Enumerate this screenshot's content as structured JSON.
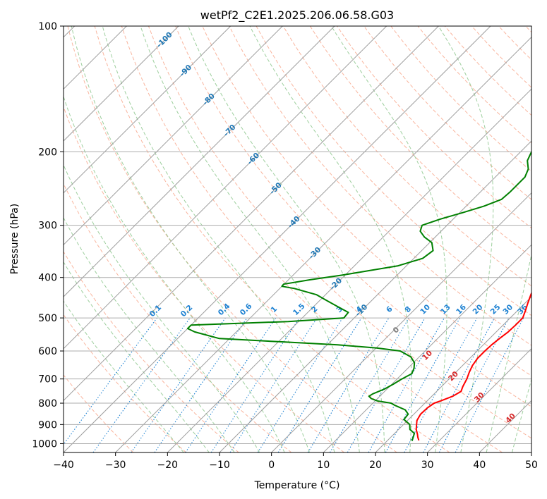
{
  "chart_data": {
    "type": "line",
    "title": "wetPf2_C2E1.2025.206.06.58.G03",
    "xlabel": "Temperature (°C)",
    "ylabel": "Pressure (hPa)",
    "xlim": [
      -40,
      50
    ],
    "ylim": [
      1050,
      100
    ],
    "y_scale": "log",
    "grid": true,
    "x_ticks": [
      -40,
      -30,
      -20,
      -10,
      0,
      10,
      20,
      30,
      40,
      50
    ],
    "x_tick_labels": [
      "−40",
      "−30",
      "−20",
      "−10",
      "0",
      "10",
      "20",
      "30",
      "40",
      "50"
    ],
    "y_ticks": [
      1000,
      900,
      800,
      700,
      600,
      500,
      400,
      300,
      200,
      100
    ],
    "y_tick_labels": [
      "1000",
      "900",
      "800",
      "700",
      "600",
      "500",
      "400",
      "300",
      "200",
      "100"
    ],
    "series": [
      {
        "color": "#ff0000",
        "pressure": [
          982,
          965,
          948,
          925,
          905,
          880,
          850,
          820,
          800,
          790,
          770,
          750,
          730,
          700,
          675,
          650,
          625,
          600,
          580,
          560,
          540,
          520,
          500,
          480,
          460,
          440,
          420,
          400,
          380,
          360,
          340,
          320,
          300,
          280,
          260,
          240,
          220,
          200,
          190,
          180,
          170,
          160,
          150,
          140,
          130,
          120,
          115,
          110,
          105,
          100
        ],
        "temperature": [
          26,
          25.2,
          24.5,
          23.4,
          22.7,
          21.8,
          21.3,
          21.4,
          21.8,
          22.6,
          24,
          24.7,
          24.1,
          23.4,
          22.6,
          21.9,
          21.5,
          21.5,
          21.6,
          21.9,
          22.3,
          22.4,
          22.4,
          21.5,
          20.5,
          19.5,
          18.6,
          17.2,
          15.6,
          14.1,
          13,
          13.2,
          13.8,
          12.4,
          10.6,
          8.1,
          5.6,
          3.6,
          3.1,
          3.1,
          3.1,
          2.7,
          1.5,
          0.1,
          -0.5,
          -0.9,
          -0.2,
          0.8,
          2.5,
          4.2
        ]
      },
      {
        "color": "#008000",
        "pressure": [
          985,
          965,
          945,
          925,
          900,
          875,
          850,
          830,
          810,
          800,
          790,
          780,
          770,
          760,
          740,
          720,
          700,
          680,
          660,
          640,
          620,
          600,
          590,
          580,
          570,
          560,
          540,
          530,
          520,
          510,
          500,
          485,
          470,
          455,
          440,
          425,
          420,
          415,
          405,
          395,
          385,
          375,
          360,
          345,
          330,
          320,
          310,
          300,
          290,
          280,
          270,
          260,
          250,
          240,
          230,
          220,
          210,
          200,
          195,
          185,
          175,
          165,
          155,
          145,
          135,
          125,
          120,
          115,
          110,
          105,
          100
        ],
        "temperature": [
          24.8,
          24.3,
          23.8,
          22.2,
          21.2,
          19.1,
          18.9,
          17.5,
          14.7,
          13.5,
          10.4,
          8.8,
          7.9,
          8.2,
          9.5,
          10.3,
          10.9,
          11.8,
          11.2,
          10.2,
          8.4,
          5.2,
          0.1,
          -8,
          -20,
          -32,
          -38,
          -40,
          -40,
          -22,
          -12,
          -12.2,
          -15.3,
          -18.5,
          -21.7,
          -27.2,
          -30,
          -30.1,
          -25.8,
          -20.7,
          -16.2,
          -11.6,
          -8.3,
          -7.8,
          -9.6,
          -12.1,
          -14,
          -14.8,
          -12.5,
          -9.5,
          -6.6,
          -4.5,
          -4.3,
          -4.3,
          -4.3,
          -5.2,
          -7,
          -7.9,
          -6.5,
          -3.7,
          -0.9,
          -1.4,
          -1.9,
          -1.7,
          -0.6,
          -1.2,
          -0.9,
          -0.6,
          0,
          0.7,
          1.3
        ]
      }
    ],
    "dry_adiabat_labels": [
      "-100",
      "-90",
      "-80",
      "-70",
      "-60",
      "-50",
      "-40",
      "-30",
      "-20",
      "-10",
      "0",
      "10",
      "20",
      "30",
      "40"
    ],
    "mixing_ratio_labels": [
      "0.1",
      "0.2",
      "0.4",
      "0.6",
      "1",
      "1.5",
      "2",
      "3",
      "4",
      "6",
      "8",
      "10",
      "13",
      "16",
      "20",
      "25",
      "30",
      "36"
    ],
    "colors": {
      "isotherm": "#9e9e9e",
      "isobar": "#adadad",
      "dry_adiabat": "#f8a386",
      "moist_adiabat": "#86c386",
      "mixing_ratio": "#1e82d2",
      "dry_label": "#d62728",
      "isotherm_label": "#1f77b4",
      "temperature": "#ff0000",
      "dewpoint": "#008000"
    }
  }
}
